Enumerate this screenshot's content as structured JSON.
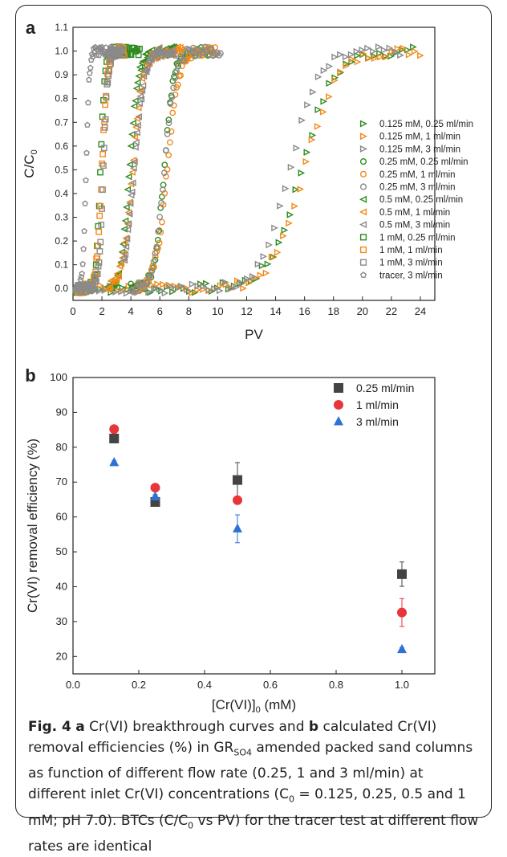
{
  "colors": {
    "green": "#2e8b1f",
    "orange": "#f28a1a",
    "gray": "#8a8a8a",
    "dark": "#444444",
    "red": "#e8353a",
    "blue": "#2f72d6"
  },
  "caption": {
    "fig": "Fig. 4",
    "a": "a",
    "t1": " Cr(VI) breakthrough curves and ",
    "b": "b",
    "t2": " calculated Cr(VI) removal efficiencies (%) in GR",
    "sub1": "SO4",
    "t3": " amended packed sand columns as function of different flow rate (0.25, 1 and 3 ml/min) at different inlet Cr(VI) concentrations (C",
    "sub2": "0",
    "t4": " = 0.125, 0.25, 0.5 and 1 mM; pH 7.0). BTCs (C/C",
    "sub3": "0",
    "t5": " vs PV) for the tracer test at different flow rates are identical"
  },
  "chart_data": [
    {
      "panel": "a",
      "type": "scatter",
      "xlabel": "PV",
      "ylabel": "C/C0",
      "xlim": [
        0,
        25
      ],
      "ylim": [
        -0.05,
        1.1
      ],
      "xticks": [
        0,
        2,
        4,
        6,
        8,
        10,
        12,
        14,
        16,
        18,
        20,
        22,
        24
      ],
      "yticks": [
        0.0,
        0.1,
        0.2,
        0.3,
        0.4,
        0.5,
        0.6,
        0.7,
        0.8,
        0.9,
        1.0,
        1.1
      ],
      "legend_position": "right",
      "series": [
        {
          "name": "0.125 mM, 0.25 ml/min",
          "marker": "tri-right",
          "color": "green",
          "mid": 15.8,
          "width": 1.1,
          "start": 0.3,
          "end": 23.5
        },
        {
          "name": "0.125 mM, 1 ml/min",
          "marker": "tri-right",
          "color": "orange",
          "mid": 16.0,
          "width": 1.1,
          "start": 0.3,
          "end": 24.0
        },
        {
          "name": "0.125 mM, 3 ml/min",
          "marker": "tri-right",
          "color": "gray",
          "mid": 15.0,
          "width": 1.0,
          "start": 0.3,
          "end": 23.0
        },
        {
          "name": "0.25 mM, 0.25 ml/min",
          "marker": "circle",
          "color": "green",
          "mid": 6.3,
          "width": 0.33,
          "start": 4.0,
          "end": 9.6
        },
        {
          "name": "0.25 mM, 1 ml/min",
          "marker": "circle",
          "color": "orange",
          "mid": 6.5,
          "width": 0.4,
          "start": 4.5,
          "end": 10.0
        },
        {
          "name": "0.25 mM, 3 ml/min",
          "marker": "circle",
          "color": "gray",
          "mid": 6.3,
          "width": 0.35,
          "start": 4.0,
          "end": 10.3
        },
        {
          "name": "0.5 mM, 0.25 ml/min",
          "marker": "tri-left",
          "color": "green",
          "mid": 3.9,
          "width": 0.3,
          "start": 2.4,
          "end": 7.0
        },
        {
          "name": "0.5 mM, 1 ml/min",
          "marker": "tri-left",
          "color": "orange",
          "mid": 4.1,
          "width": 0.35,
          "start": 2.4,
          "end": 7.5
        },
        {
          "name": "0.5 mM, 3 ml/min",
          "marker": "tri-left",
          "color": "gray",
          "mid": 4.2,
          "width": 0.35,
          "start": 3.5,
          "end": 7.0
        },
        {
          "name": "1 mM, 0.25 ml/min",
          "marker": "square",
          "color": "green",
          "mid": 1.9,
          "width": 0.15,
          "start": 0.2,
          "end": 4.6
        },
        {
          "name": "1 mM, 1 ml/min",
          "marker": "square",
          "color": "orange",
          "mid": 2.0,
          "width": 0.18,
          "start": 0.3,
          "end": 3.6
        },
        {
          "name": "1 mM, 3 ml/min",
          "marker": "square",
          "color": "gray",
          "mid": 2.1,
          "width": 0.15,
          "start": 0.2,
          "end": 3.2
        },
        {
          "name": "tracer, 3 ml/min",
          "marker": "pentagon",
          "color": "gray",
          "mid": 0.9,
          "width": 0.11,
          "start": 0.3,
          "end": 3.5
        }
      ]
    },
    {
      "panel": "b",
      "type": "scatter",
      "xlabel": "[Cr(VI)]",
      "xlabel_sub": "0",
      "xlabel_unit": " (mM)",
      "ylabel": "Cr(VI) removal efficiency (%)",
      "xlim": [
        0,
        1.1
      ],
      "ylim": [
        15,
        100
      ],
      "xticks": [
        "0.0",
        "0.2",
        "0.4",
        "0.6",
        "0.8",
        "1.0"
      ],
      "yticks": [
        "20",
        "30",
        "40",
        "50",
        "60",
        "70",
        "80",
        "90",
        "100"
      ],
      "legend_position": "top-right",
      "series": [
        {
          "name": "0.25 ml/min",
          "marker": "square",
          "color": "dark",
          "x": [
            0.125,
            0.25,
            0.5,
            1.0
          ],
          "y": [
            82.5,
            64.3,
            70.6,
            43.6
          ],
          "err": [
            0.7,
            0.8,
            5.0,
            3.5
          ]
        },
        {
          "name": "1 ml/min",
          "marker": "circle",
          "color": "red",
          "x": [
            0.125,
            0.25,
            0.5,
            1.0
          ],
          "y": [
            85.2,
            68.4,
            64.8,
            32.6
          ],
          "err": [
            0.5,
            0.6,
            0.5,
            4.0
          ]
        },
        {
          "name": "3 ml/min",
          "marker": "triangle",
          "color": "blue",
          "x": [
            0.125,
            0.25,
            0.5,
            1.0
          ],
          "y": [
            75.6,
            65.8,
            56.6,
            22.0
          ],
          "err": [
            0.5,
            0.6,
            4.0,
            0.5
          ]
        }
      ]
    }
  ]
}
